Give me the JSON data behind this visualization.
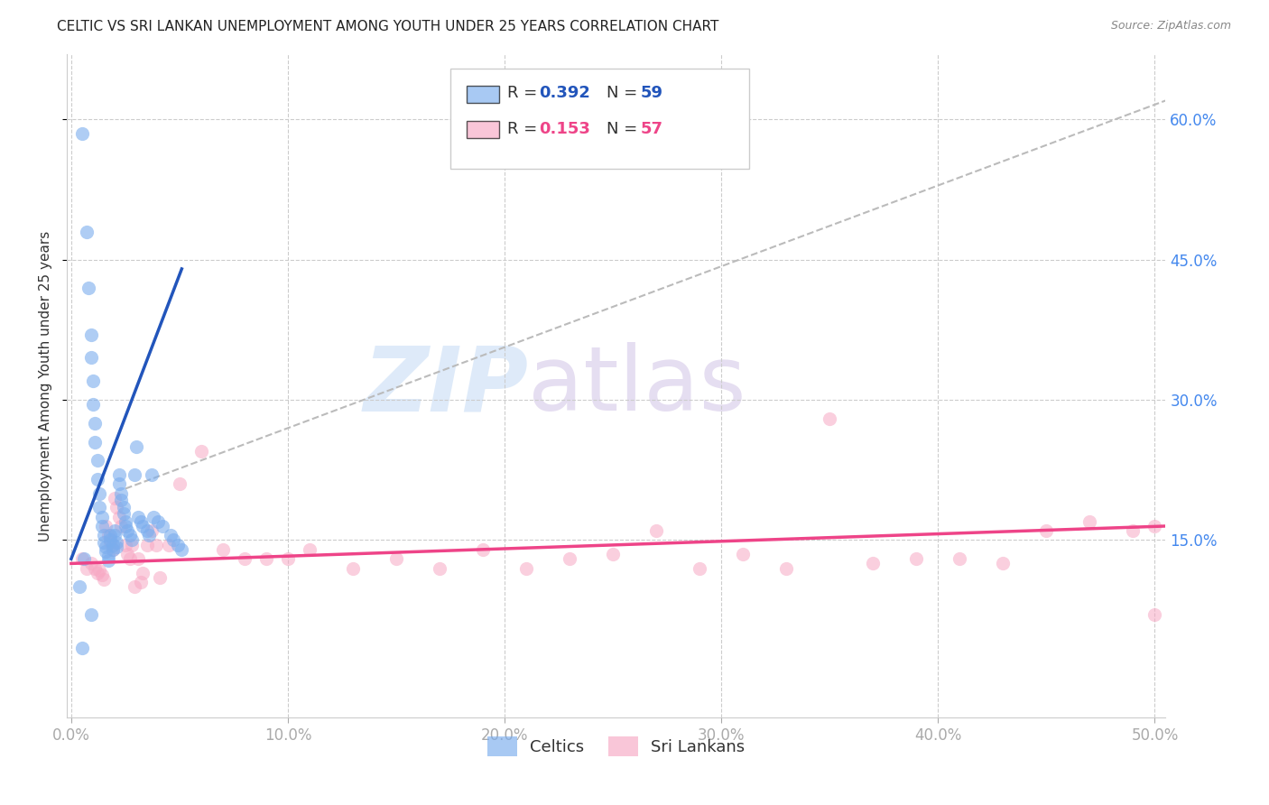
{
  "title": "CELTIC VS SRI LANKAN UNEMPLOYMENT AMONG YOUTH UNDER 25 YEARS CORRELATION CHART",
  "source": "Source: ZipAtlas.com",
  "ylabel": "Unemployment Among Youth under 25 years",
  "xlim": [
    -0.002,
    0.505
  ],
  "ylim": [
    -0.04,
    0.67
  ],
  "blue_R": 0.392,
  "blue_N": 59,
  "pink_R": 0.153,
  "pink_N": 57,
  "blue_color": "#7aadee",
  "pink_color": "#f7a8c4",
  "blue_line_color": "#2255bb",
  "pink_line_color": "#ee4488",
  "tick_label_color": "#4488ee",
  "title_color": "#222222",
  "background": "#ffffff",
  "watermark_zip": "ZIP",
  "watermark_atlas": "atlas",
  "blue_scatter_x": [
    0.004,
    0.005,
    0.006,
    0.007,
    0.008,
    0.009,
    0.009,
    0.01,
    0.01,
    0.011,
    0.011,
    0.012,
    0.012,
    0.013,
    0.013,
    0.014,
    0.014,
    0.015,
    0.015,
    0.016,
    0.016,
    0.017,
    0.017,
    0.018,
    0.018,
    0.019,
    0.019,
    0.02,
    0.02,
    0.021,
    0.021,
    0.022,
    0.022,
    0.023,
    0.023,
    0.024,
    0.024,
    0.025,
    0.025,
    0.026,
    0.027,
    0.028,
    0.029,
    0.03,
    0.031,
    0.032,
    0.033,
    0.035,
    0.036,
    0.037,
    0.038,
    0.04,
    0.042,
    0.046,
    0.047,
    0.049,
    0.051,
    0.005,
    0.009
  ],
  "blue_scatter_y": [
    0.1,
    0.585,
    0.13,
    0.48,
    0.42,
    0.37,
    0.345,
    0.32,
    0.295,
    0.275,
    0.255,
    0.235,
    0.215,
    0.2,
    0.185,
    0.175,
    0.165,
    0.155,
    0.148,
    0.143,
    0.138,
    0.133,
    0.128,
    0.155,
    0.15,
    0.145,
    0.14,
    0.16,
    0.155,
    0.148,
    0.143,
    0.22,
    0.21,
    0.2,
    0.193,
    0.185,
    0.178,
    0.17,
    0.165,
    0.16,
    0.155,
    0.15,
    0.22,
    0.25,
    0.175,
    0.17,
    0.165,
    0.16,
    0.155,
    0.22,
    0.175,
    0.17,
    0.165,
    0.155,
    0.15,
    0.145,
    0.14,
    0.035,
    0.07
  ],
  "pink_scatter_x": [
    0.005,
    0.007,
    0.009,
    0.011,
    0.012,
    0.013,
    0.014,
    0.015,
    0.016,
    0.017,
    0.018,
    0.019,
    0.02,
    0.021,
    0.022,
    0.023,
    0.025,
    0.026,
    0.027,
    0.028,
    0.029,
    0.031,
    0.032,
    0.033,
    0.035,
    0.037,
    0.039,
    0.041,
    0.045,
    0.05,
    0.06,
    0.07,
    0.08,
    0.09,
    0.1,
    0.11,
    0.13,
    0.15,
    0.17,
    0.19,
    0.21,
    0.23,
    0.25,
    0.27,
    0.29,
    0.31,
    0.33,
    0.35,
    0.37,
    0.39,
    0.41,
    0.43,
    0.45,
    0.47,
    0.49,
    0.5,
    0.5
  ],
  "pink_scatter_y": [
    0.13,
    0.12,
    0.125,
    0.12,
    0.115,
    0.118,
    0.113,
    0.108,
    0.165,
    0.155,
    0.148,
    0.14,
    0.195,
    0.185,
    0.175,
    0.165,
    0.145,
    0.135,
    0.13,
    0.145,
    0.1,
    0.13,
    0.105,
    0.115,
    0.145,
    0.16,
    0.145,
    0.11,
    0.145,
    0.21,
    0.245,
    0.14,
    0.13,
    0.13,
    0.13,
    0.14,
    0.12,
    0.13,
    0.12,
    0.14,
    0.12,
    0.13,
    0.135,
    0.16,
    0.12,
    0.135,
    0.12,
    0.28,
    0.125,
    0.13,
    0.13,
    0.125,
    0.16,
    0.17,
    0.16,
    0.165,
    0.07
  ],
  "blue_line_x": [
    0.0,
    0.051
  ],
  "blue_line_y": [
    0.13,
    0.44
  ],
  "pink_line_x": [
    0.0,
    0.505
  ],
  "pink_line_y": [
    0.125,
    0.165
  ],
  "diag_line_x": [
    0.025,
    0.505
  ],
  "diag_line_y": [
    0.205,
    0.62
  ],
  "xticks": [
    0.0,
    0.1,
    0.2,
    0.3,
    0.4,
    0.5
  ],
  "yticks_right": [
    0.15,
    0.3,
    0.45,
    0.6
  ]
}
